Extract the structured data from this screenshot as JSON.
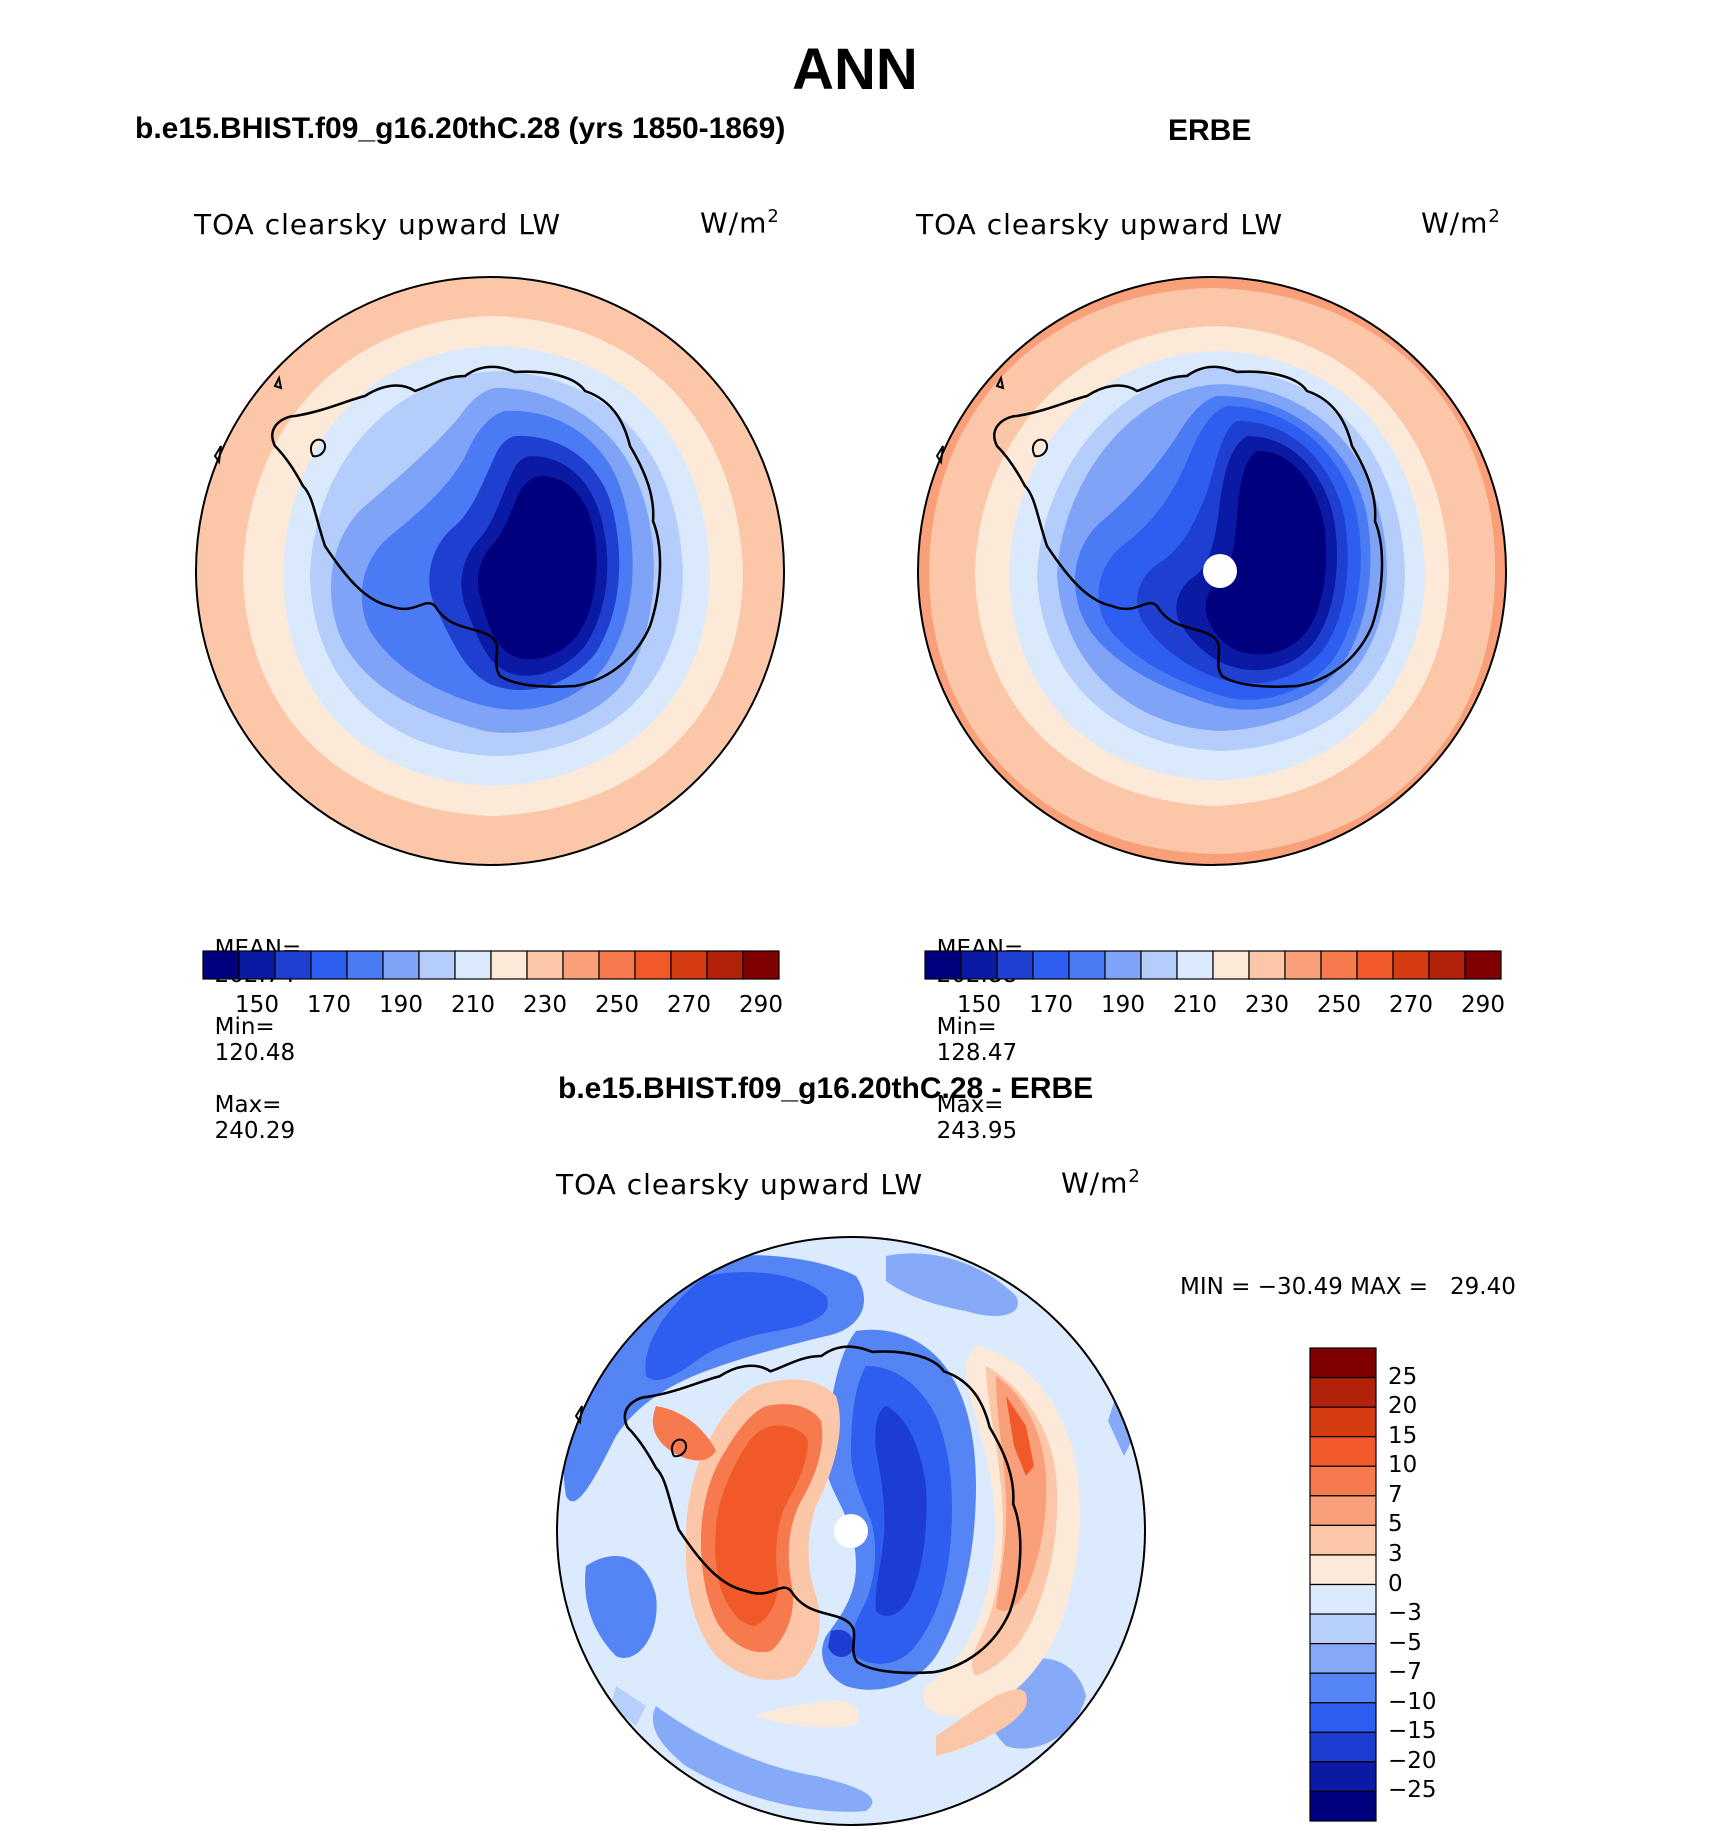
{
  "title": "ANN",
  "colors": {
    "abs_levels": [
      "#00007f",
      "#0a1aa5",
      "#1f3fd0",
      "#2e5ef0",
      "#4a7bf4",
      "#7fa4f7",
      "#b4cdfa",
      "#dbe9fd",
      "#fde9d8",
      "#fbc7a8",
      "#f9a07a",
      "#f67a4d",
      "#f15a28",
      "#d63c12",
      "#b2220a",
      "#7f0000"
    ],
    "diff_levels": [
      "#00007f",
      "#0a1aa5",
      "#1c3cd2",
      "#2e5ef0",
      "#5585f5",
      "#86aaf7",
      "#b6cffb",
      "#dceafe",
      "#fde9d8",
      "#fbc7a8",
      "#f9a07a",
      "#f67a4d",
      "#f15a28",
      "#d63c12",
      "#b2220a",
      "#7f0000"
    ]
  },
  "panels": {
    "model": {
      "title": "b.e15.BHIST.f09_g16.20thC.28 (yrs 1850-1869)",
      "variable": "TOA clearsky upward LW",
      "units_base": "W/m",
      "units_exp": "2",
      "stats": {
        "mean_label": "MEAN=",
        "mean": "202.74",
        "min_label": "Min=",
        "min": "120.48",
        "max_label": "Max=",
        "max": "240.29"
      },
      "colorbar_ticks": [
        "150",
        "170",
        "190",
        "210",
        "230",
        "250",
        "270",
        "290"
      ]
    },
    "obs": {
      "title": "ERBE",
      "variable": "TOA clearsky upward LW",
      "units_base": "W/m",
      "units_exp": "2",
      "stats": {
        "mean_label": "MEAN=",
        "mean": "202.88",
        "min_label": "Min=",
        "min": "128.47",
        "max_label": "Max=",
        "max": "243.95"
      },
      "colorbar_ticks": [
        "150",
        "170",
        "190",
        "210",
        "230",
        "250",
        "270",
        "290"
      ]
    },
    "diff": {
      "title": "b.e15.BHIST.f09_g16.20thC.28 - ERBE",
      "variable": "TOA clearsky upward LW",
      "units_base": "W/m",
      "units_exp": "2",
      "minmax": "MIN = −30.49 MAX =   29.40",
      "colorbar_ticks": [
        "25",
        "20",
        "15",
        "10",
        "7",
        "5",
        "3",
        "0",
        "−3",
        "−5",
        "−7",
        "−10",
        "−15",
        "−20",
        "−25"
      ]
    }
  }
}
